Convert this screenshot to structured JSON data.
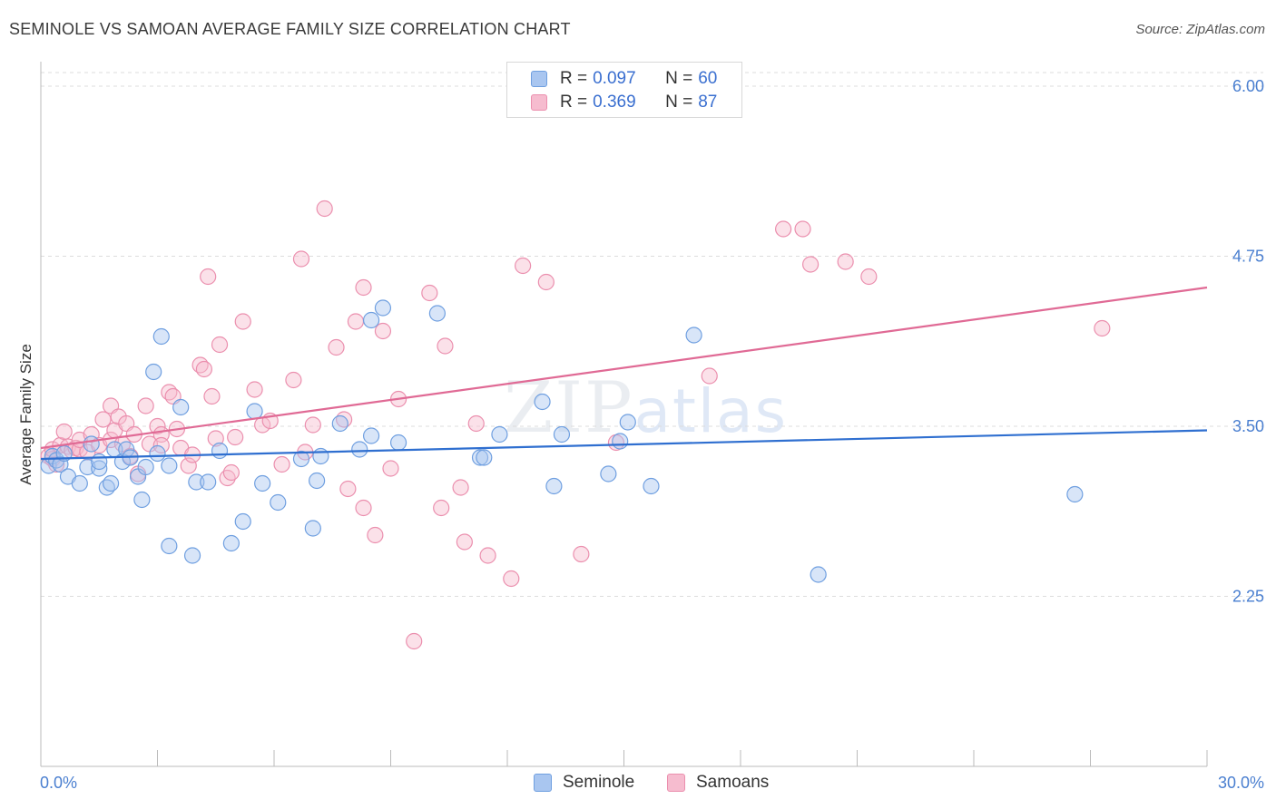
{
  "title": "SEMINOLE VS SAMOAN AVERAGE FAMILY SIZE CORRELATION CHART",
  "source": "Source: ZipAtlas.com",
  "watermark": {
    "zip": "ZIP",
    "atlas": "atlas"
  },
  "legend": {
    "rows": [
      {
        "series": "Seminole",
        "r_label": "R =",
        "r_value": "0.097",
        "n_label": "N =",
        "n_value": "60"
      },
      {
        "series": "Samoans",
        "r_label": "R =",
        "r_value": "0.369",
        "n_label": "N =",
        "n_value": "87"
      }
    ]
  },
  "colors": {
    "seminole_fill": "#a9c6f0",
    "seminole_stroke": "#6f9fe0",
    "seminole_line": "#2f6fd0",
    "samoans_fill": "#f6bccf",
    "samoans_stroke": "#eb8fae",
    "samoans_line": "#e06a95",
    "axis_label": "#4a7fd0"
  },
  "chart_data": {
    "type": "scatter",
    "title": "SEMINOLE VS SAMOAN AVERAGE FAMILY SIZE CORRELATION CHART",
    "xlabel": "",
    "ylabel": "Average Family Size",
    "xlim": [
      0,
      30
    ],
    "ylim": [
      1.0,
      6.1
    ],
    "x_tick_labels": [
      "0.0%",
      "30.0%"
    ],
    "y_ticks": [
      2.25,
      3.5,
      4.75,
      6.0
    ],
    "y_tick_labels": [
      "2.25",
      "3.50",
      "4.75",
      "6.00"
    ],
    "grid": true,
    "legend_position": "top-center",
    "series": [
      {
        "name": "Seminole",
        "R": 0.097,
        "N": 60,
        "trend": {
          "x": [
            0,
            30
          ],
          "y": [
            3.26,
            3.47
          ]
        },
        "points": [
          [
            0.2,
            3.21
          ],
          [
            0.3,
            3.28
          ],
          [
            0.4,
            3.25
          ],
          [
            0.5,
            3.22
          ],
          [
            0.6,
            3.3
          ],
          [
            0.7,
            3.13
          ],
          [
            1.0,
            3.08
          ],
          [
            1.2,
            3.2
          ],
          [
            1.3,
            3.37
          ],
          [
            1.5,
            3.19
          ],
          [
            1.5,
            3.24
          ],
          [
            1.7,
            3.05
          ],
          [
            1.8,
            3.08
          ],
          [
            1.9,
            3.33
          ],
          [
            2.1,
            3.24
          ],
          [
            2.2,
            3.33
          ],
          [
            2.3,
            3.27
          ],
          [
            2.5,
            3.13
          ],
          [
            2.6,
            2.96
          ],
          [
            2.7,
            3.2
          ],
          [
            2.9,
            3.9
          ],
          [
            3.0,
            3.3
          ],
          [
            3.1,
            4.16
          ],
          [
            3.3,
            3.21
          ],
          [
            3.3,
            2.62
          ],
          [
            3.6,
            3.64
          ],
          [
            3.9,
            2.55
          ],
          [
            4.0,
            3.09
          ],
          [
            4.3,
            3.09
          ],
          [
            4.6,
            3.32
          ],
          [
            4.9,
            2.64
          ],
          [
            5.2,
            2.8
          ],
          [
            5.5,
            3.61
          ],
          [
            5.7,
            3.08
          ],
          [
            6.1,
            2.94
          ],
          [
            6.7,
            3.26
          ],
          [
            7.0,
            2.75
          ],
          [
            7.1,
            3.1
          ],
          [
            7.2,
            3.28
          ],
          [
            7.7,
            3.52
          ],
          [
            8.2,
            3.33
          ],
          [
            8.5,
            4.28
          ],
          [
            8.5,
            3.43
          ],
          [
            8.8,
            4.37
          ],
          [
            9.2,
            3.38
          ],
          [
            10.2,
            4.33
          ],
          [
            11.3,
            3.27
          ],
          [
            11.4,
            3.27
          ],
          [
            11.8,
            3.44
          ],
          [
            12.9,
            3.68
          ],
          [
            13.2,
            3.06
          ],
          [
            13.4,
            3.44
          ],
          [
            14.6,
            3.15
          ],
          [
            14.9,
            3.39
          ],
          [
            15.1,
            3.53
          ],
          [
            15.7,
            3.06
          ],
          [
            16.8,
            4.17
          ],
          [
            20.0,
            2.41
          ],
          [
            26.6,
            3.0
          ]
        ]
      },
      {
        "name": "Samoans",
        "R": 0.369,
        "N": 87,
        "trend": {
          "x": [
            0,
            30
          ],
          "y": [
            3.34,
            4.52
          ]
        },
        "points": [
          [
            0.2,
            3.28
          ],
          [
            0.3,
            3.26
          ],
          [
            0.3,
            3.33
          ],
          [
            0.4,
            3.22
          ],
          [
            0.5,
            3.36
          ],
          [
            0.6,
            3.46
          ],
          [
            0.7,
            3.35
          ],
          [
            0.8,
            3.32
          ],
          [
            0.9,
            3.34
          ],
          [
            1.0,
            3.33
          ],
          [
            1.0,
            3.4
          ],
          [
            1.2,
            3.31
          ],
          [
            1.3,
            3.44
          ],
          [
            1.5,
            3.36
          ],
          [
            1.6,
            3.55
          ],
          [
            1.8,
            3.4
          ],
          [
            1.8,
            3.65
          ],
          [
            1.9,
            3.47
          ],
          [
            2.0,
            3.57
          ],
          [
            2.1,
            3.37
          ],
          [
            2.2,
            3.52
          ],
          [
            2.3,
            3.28
          ],
          [
            2.4,
            3.44
          ],
          [
            2.5,
            3.15
          ],
          [
            2.7,
            3.65
          ],
          [
            2.8,
            3.37
          ],
          [
            3.0,
            3.5
          ],
          [
            3.1,
            3.44
          ],
          [
            3.1,
            3.36
          ],
          [
            3.3,
            3.75
          ],
          [
            3.4,
            3.72
          ],
          [
            3.5,
            3.48
          ],
          [
            3.6,
            3.34
          ],
          [
            3.8,
            3.21
          ],
          [
            3.9,
            3.29
          ],
          [
            4.1,
            3.95
          ],
          [
            4.2,
            3.92
          ],
          [
            4.3,
            4.6
          ],
          [
            4.4,
            3.72
          ],
          [
            4.5,
            3.41
          ],
          [
            4.6,
            4.1
          ],
          [
            4.8,
            3.12
          ],
          [
            4.9,
            3.16
          ],
          [
            5.0,
            3.42
          ],
          [
            5.2,
            4.27
          ],
          [
            5.5,
            3.77
          ],
          [
            5.7,
            3.51
          ],
          [
            5.9,
            3.54
          ],
          [
            6.2,
            3.22
          ],
          [
            6.5,
            3.84
          ],
          [
            6.7,
            4.73
          ],
          [
            6.8,
            3.31
          ],
          [
            7.0,
            3.51
          ],
          [
            7.3,
            5.1
          ],
          [
            7.6,
            4.08
          ],
          [
            7.8,
            3.55
          ],
          [
            7.9,
            3.04
          ],
          [
            8.1,
            4.27
          ],
          [
            8.3,
            4.52
          ],
          [
            8.3,
            2.9
          ],
          [
            8.6,
            2.7
          ],
          [
            8.8,
            4.2
          ],
          [
            9.0,
            3.19
          ],
          [
            9.2,
            3.7
          ],
          [
            9.6,
            1.92
          ],
          [
            10.0,
            4.48
          ],
          [
            10.3,
            2.9
          ],
          [
            10.4,
            4.09
          ],
          [
            10.8,
            3.05
          ],
          [
            10.9,
            2.65
          ],
          [
            11.2,
            3.52
          ],
          [
            11.5,
            2.55
          ],
          [
            12.1,
            2.38
          ],
          [
            12.4,
            4.68
          ],
          [
            13.0,
            4.56
          ],
          [
            13.9,
            2.56
          ],
          [
            14.8,
            3.38
          ],
          [
            17.2,
            3.87
          ],
          [
            19.1,
            4.95
          ],
          [
            19.6,
            4.95
          ],
          [
            19.8,
            4.69
          ],
          [
            20.7,
            4.71
          ],
          [
            21.3,
            4.6
          ],
          [
            27.3,
            4.22
          ]
        ]
      }
    ]
  }
}
